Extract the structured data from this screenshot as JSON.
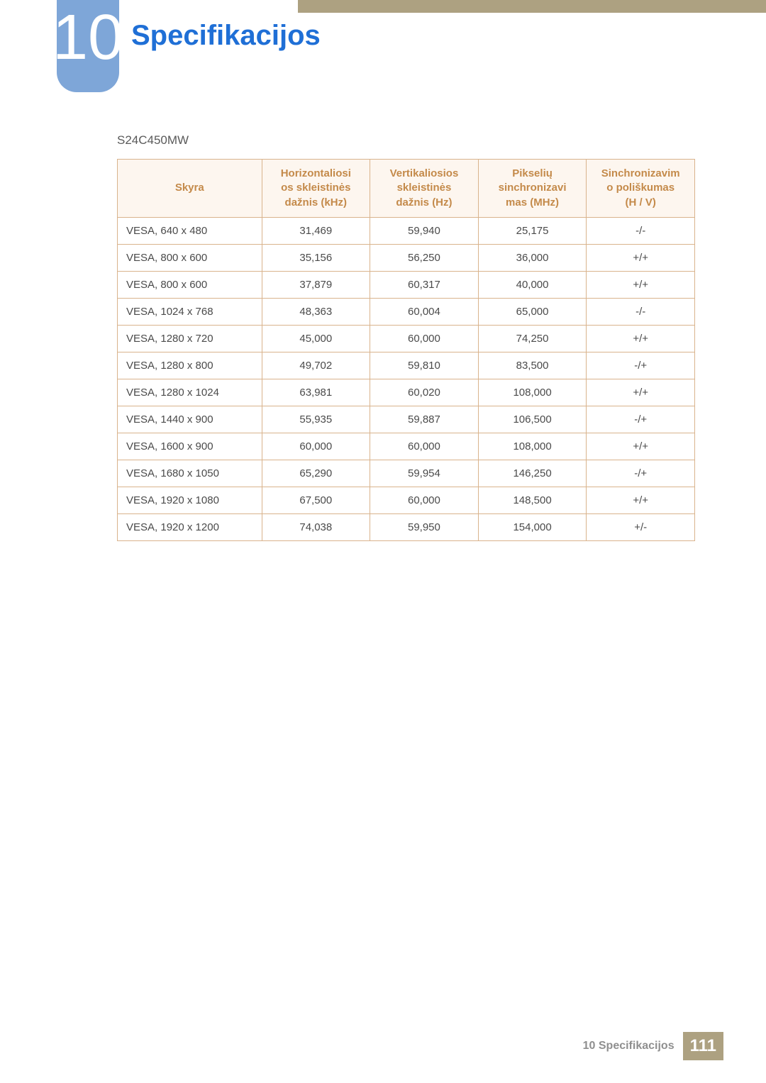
{
  "chapter": {
    "number": "10",
    "title": "Specifikacijos"
  },
  "model": "S24C450MW",
  "table": {
    "type": "table",
    "header_bg": "#fdf6ef",
    "header_color": "#c48a4a",
    "border_color": "#d9b38c",
    "cell_color": "#4a4a4a",
    "columns": [
      "Skyra",
      "Horizontaliosi\nos skleistinės\ndažnis (kHz)",
      "Vertikaliosios\nskleistinės\ndažnis (Hz)",
      "Pikselių\nsinchronizavi\nmas (MHz)",
      "Sinchronizavim\no poliškumas\n(H / V)"
    ],
    "rows": [
      [
        "VESA, 640 x 480",
        "31,469",
        "59,940",
        "25,175",
        "-/-"
      ],
      [
        "VESA, 800 x 600",
        "35,156",
        "56,250",
        "36,000",
        "+/+"
      ],
      [
        "VESA, 800 x 600",
        "37,879",
        "60,317",
        "40,000",
        "+/+"
      ],
      [
        "VESA, 1024 x 768",
        "48,363",
        "60,004",
        "65,000",
        "-/-"
      ],
      [
        "VESA, 1280 x 720",
        "45,000",
        "60,000",
        "74,250",
        "+/+"
      ],
      [
        "VESA, 1280 x 800",
        "49,702",
        "59,810",
        "83,500",
        "-/+"
      ],
      [
        "VESA, 1280 x 1024",
        "63,981",
        "60,020",
        "108,000",
        "+/+"
      ],
      [
        "VESA, 1440 x 900",
        "55,935",
        "59,887",
        "106,500",
        "-/+"
      ],
      [
        "VESA, 1600 x 900",
        "60,000",
        "60,000",
        "108,000",
        "+/+"
      ],
      [
        "VESA, 1680 x 1050",
        "65,290",
        "59,954",
        "146,250",
        "-/+"
      ],
      [
        "VESA, 1920 x 1080",
        "67,500",
        "60,000",
        "148,500",
        "+/+"
      ],
      [
        "VESA, 1920 x 1200",
        "74,038",
        "59,950",
        "154,000",
        "+/-"
      ]
    ]
  },
  "footer": {
    "label": "10 Specifikacijos",
    "page": "111"
  },
  "colors": {
    "topbar": "#ada181",
    "badge": "#7ea6d8",
    "title": "#1f6fd6"
  }
}
